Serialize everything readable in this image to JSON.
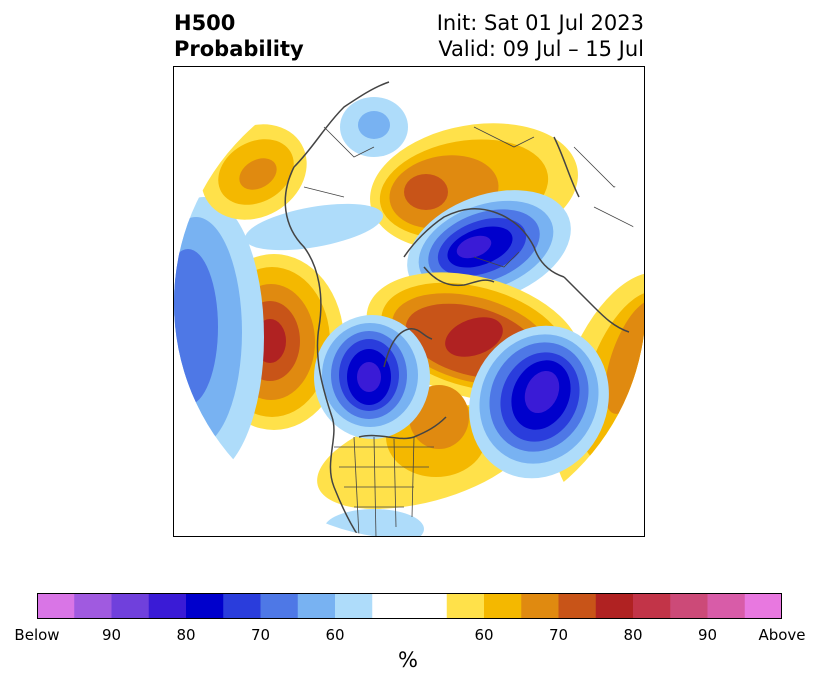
{
  "header": {
    "title_line1": "H500",
    "title_line2": "Probability",
    "init": "Init: Sat 01 Jul 2023",
    "valid": "Valid: 09 Jul – 15 Jul"
  },
  "colorbar": {
    "unit": "%",
    "tick_labels": [
      "Below",
      "90",
      "80",
      "70",
      "60",
      "60",
      "70",
      "80",
      "90",
      "Above"
    ],
    "colors": [
      "#d975e6",
      "#a05ae0",
      "#7040dc",
      "#3a1bd6",
      "#0000cc",
      "#2a3ddc",
      "#4e78e6",
      "#78b2f2",
      "#aedcfa",
      "#ffffff",
      "#ffffff",
      "#ffe14a",
      "#f4b800",
      "#e08a10",
      "#c85418",
      "#b02222",
      "#c23448",
      "#cc4a78",
      "#d85ca8",
      "#e878e0"
    ]
  },
  "map": {
    "projection": "north-polar-stereographic",
    "field": "500 hPa height anomaly probability"
  }
}
